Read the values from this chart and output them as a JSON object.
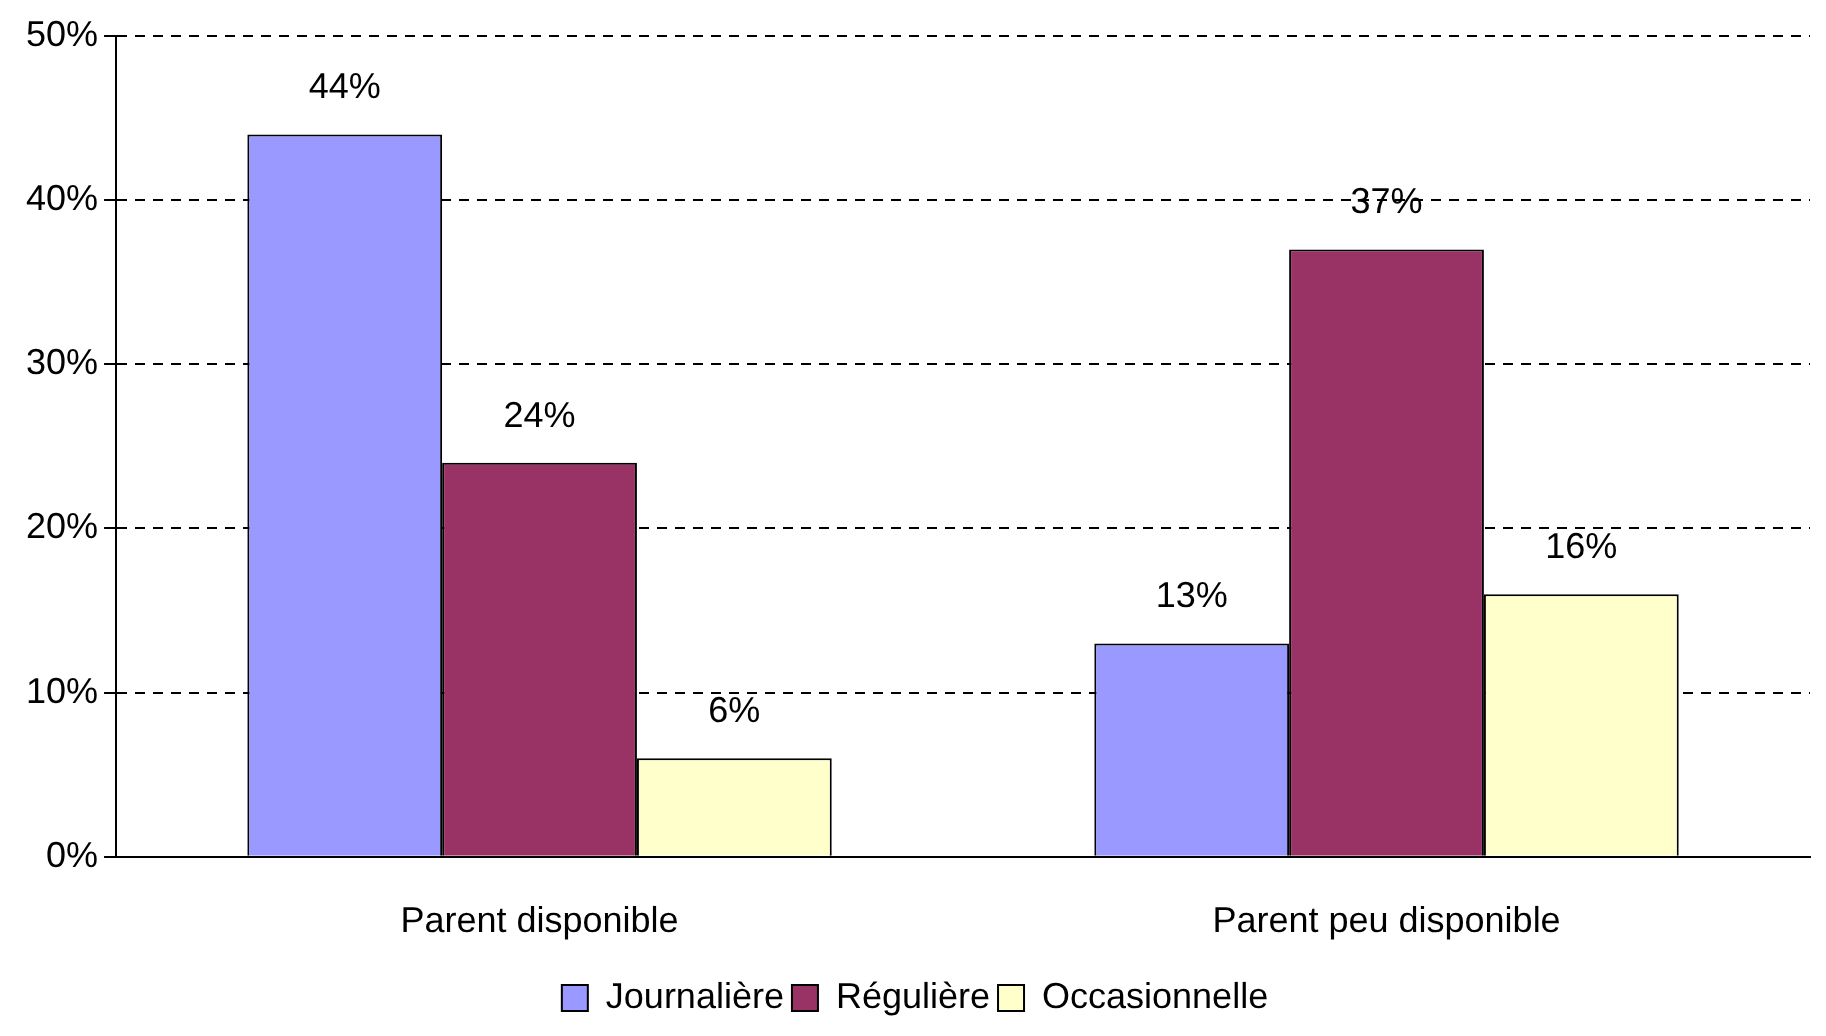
{
  "chart_data": {
    "type": "bar",
    "categories": [
      "Parent disponible",
      "Parent peu disponible"
    ],
    "series": [
      {
        "name": "Journalière",
        "color": "#9999ff",
        "values": [
          44,
          13
        ],
        "value_labels": [
          "44%",
          "13%"
        ]
      },
      {
        "name": "Régulière",
        "color": "#993366",
        "values": [
          24,
          37
        ],
        "value_labels": [
          "24%",
          "37%"
        ]
      },
      {
        "name": "Occasionnelle",
        "color": "#ffffcc",
        "values": [
          6,
          16
        ],
        "value_labels": [
          "6%",
          "16%"
        ]
      }
    ],
    "ylim": [
      0,
      50
    ],
    "yticks": [
      {
        "value": 0,
        "label": "0%"
      },
      {
        "value": 10,
        "label": "10%"
      },
      {
        "value": 20,
        "label": "20%"
      },
      {
        "value": 30,
        "label": "30%"
      },
      {
        "value": 40,
        "label": "40%"
      },
      {
        "value": 50,
        "label": "50%"
      }
    ],
    "grid": "y",
    "legend": "bottom"
  }
}
